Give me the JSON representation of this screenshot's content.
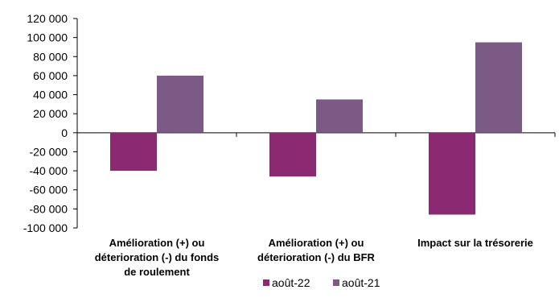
{
  "chart_data": {
    "type": "bar",
    "categories": [
      [
        "Amélioration (+) ou",
        "déterioration (-) du fonds",
        "de roulement"
      ],
      [
        "Amélioration (+) ou",
        "déterioration (-) du BFR"
      ],
      [
        "Impact sur la trésorerie"
      ]
    ],
    "series": [
      {
        "name": "août-22",
        "color": "#8B2A72",
        "values": [
          -40000,
          -46000,
          -86000
        ]
      },
      {
        "name": "août-21",
        "color": "#7B5A85",
        "values": [
          60000,
          35000,
          95000
        ]
      }
    ],
    "ylim": [
      -100000,
      120000
    ],
    "yticks": [
      120000,
      100000,
      80000,
      60000,
      40000,
      20000,
      0,
      -20000,
      -40000,
      -60000,
      -80000,
      -100000
    ],
    "ytick_labels": [
      "120 000",
      "100 000",
      "80 000",
      "60 000",
      "40 000",
      "20 000",
      "0",
      "-20 000",
      "-40 000",
      "-60 000",
      "-80 000",
      "-100 000"
    ],
    "grid": false,
    "legend": "bottom"
  }
}
